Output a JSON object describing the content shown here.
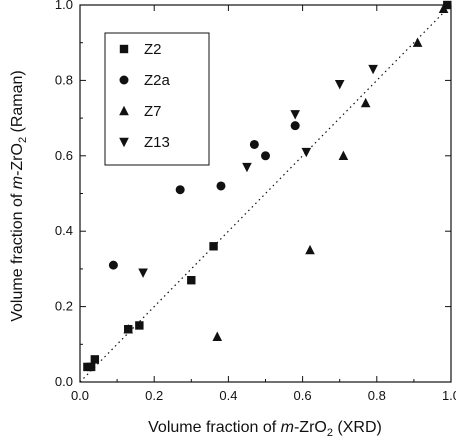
{
  "chart_data": {
    "type": "scatter",
    "xlabel": {
      "pre": "Volume fraction of ",
      "italic": "m",
      "mid": "-ZrO",
      "sub": "2",
      "post": " (XRD)"
    },
    "ylabel": {
      "pre": "Volume fraction of ",
      "italic": "m",
      "mid": "-ZrO",
      "sub": "2",
      "post": " (Raman)"
    },
    "xlim": [
      0,
      1
    ],
    "ylim": [
      0,
      1
    ],
    "xticks": [
      "0.0",
      "0.2",
      "0.4",
      "0.6",
      "0.8",
      "1.0"
    ],
    "yticks": [
      "0.0",
      "0.2",
      "0.4",
      "0.6",
      "0.8",
      "1.0"
    ],
    "legend_position": "top-left",
    "reference_line": {
      "style": "dotted",
      "from": [
        0,
        0
      ],
      "to": [
        1,
        1
      ]
    },
    "series": [
      {
        "name": "Z2",
        "marker": "square",
        "x": [
          0.02,
          0.03,
          0.04,
          0.13,
          0.16,
          0.3,
          0.36,
          0.99
        ],
        "y": [
          0.04,
          0.04,
          0.06,
          0.14,
          0.15,
          0.27,
          0.36,
          1.0
        ]
      },
      {
        "name": "Z2a",
        "marker": "circle",
        "x": [
          0.09,
          0.27,
          0.38,
          0.47,
          0.5,
          0.58
        ],
        "y": [
          0.31,
          0.51,
          0.52,
          0.63,
          0.6,
          0.68
        ]
      },
      {
        "name": "Z7",
        "marker": "triangle-up",
        "x": [
          0.13,
          0.37,
          0.62,
          0.71,
          0.77,
          0.91,
          0.98
        ],
        "y": [
          0.14,
          0.12,
          0.35,
          0.6,
          0.74,
          0.9,
          0.99
        ]
      },
      {
        "name": "Z13",
        "marker": "triangle-down",
        "x": [
          0.17,
          0.45,
          0.58,
          0.61,
          0.7,
          0.79
        ],
        "y": [
          0.29,
          0.57,
          0.71,
          0.61,
          0.79,
          0.83
        ]
      }
    ]
  }
}
